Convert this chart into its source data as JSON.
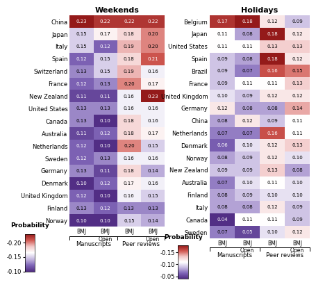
{
  "weekends_countries": [
    "China",
    "Japan",
    "Italy",
    "Spain",
    "Switzerland",
    "France",
    "New Zealand",
    "United States",
    "Canada",
    "Australia",
    "Netherlands",
    "Sweden",
    "Germany",
    "Denmark",
    "United Kingdom",
    "Finland",
    "Norway"
  ],
  "weekends_data": [
    [
      0.23,
      0.22,
      0.22,
      0.22
    ],
    [
      0.15,
      0.17,
      0.18,
      0.2
    ],
    [
      0.15,
      0.12,
      0.19,
      0.2
    ],
    [
      0.12,
      0.15,
      0.18,
      0.21
    ],
    [
      0.13,
      0.15,
      0.19,
      0.16
    ],
    [
      0.12,
      0.13,
      0.2,
      0.17
    ],
    [
      0.11,
      0.11,
      0.16,
      0.23
    ],
    [
      0.13,
      0.13,
      0.16,
      0.16
    ],
    [
      0.13,
      0.1,
      0.18,
      0.16
    ],
    [
      0.11,
      0.12,
      0.18,
      0.17
    ],
    [
      0.12,
      0.1,
      0.2,
      0.15
    ],
    [
      0.12,
      0.13,
      0.16,
      0.16
    ],
    [
      0.13,
      0.11,
      0.18,
      0.14
    ],
    [
      0.1,
      0.12,
      0.17,
      0.16
    ],
    [
      0.12,
      0.1,
      0.16,
      0.15
    ],
    [
      0.13,
      0.12,
      0.13,
      0.13
    ],
    [
      0.1,
      0.1,
      0.15,
      0.14
    ]
  ],
  "holidays_countries": [
    "Belgium",
    "Japan",
    "United States",
    "Spain",
    "Brazil",
    "France",
    "United Kingdom",
    "Germany",
    "China",
    "Netherlands",
    "Denmark",
    "Norway",
    "New Zealand",
    "Australia",
    "Finland",
    "Italy",
    "Canada",
    "Sweden"
  ],
  "holidays_data": [
    [
      0.17,
      0.18,
      0.12,
      0.09
    ],
    [
      0.11,
      0.08,
      0.18,
      0.12
    ],
    [
      0.11,
      0.11,
      0.13,
      0.13
    ],
    [
      0.09,
      0.08,
      0.18,
      0.12
    ],
    [
      0.09,
      0.07,
      0.16,
      0.15
    ],
    [
      0.09,
      0.11,
      0.11,
      0.13
    ],
    [
      0.1,
      0.09,
      0.12,
      0.12
    ],
    [
      0.12,
      0.08,
      0.08,
      0.14
    ],
    [
      0.08,
      0.12,
      0.09,
      0.11
    ],
    [
      0.07,
      0.07,
      0.16,
      0.11
    ],
    [
      0.06,
      0.1,
      0.12,
      0.13
    ],
    [
      0.08,
      0.09,
      0.12,
      0.1
    ],
    [
      0.09,
      0.09,
      0.13,
      0.08
    ],
    [
      0.07,
      0.1,
      0.11,
      0.1
    ],
    [
      0.08,
      0.09,
      0.1,
      0.1
    ],
    [
      0.08,
      0.08,
      0.12,
      0.09
    ],
    [
      0.04,
      0.11,
      0.11,
      0.09
    ],
    [
      0.07,
      0.05,
      0.1,
      0.12
    ]
  ],
  "col_labels": [
    "BMJ",
    "BMJ\nOpen",
    "BMJ",
    "BMJ\nOpen"
  ],
  "group_labels": [
    "Manuscripts",
    "Peer reviews"
  ],
  "weekends_vmin": 0.1,
  "weekends_vmax": 0.23,
  "holidays_vmin": 0.04,
  "holidays_vmax": 0.18,
  "title_weekends": "Weekends",
  "title_holidays": "Holidays",
  "probability_label": "Probability",
  "weekends_cbar_ticks": [
    0.2,
    0.15,
    0.1
  ],
  "weekends_cbar_labels": [
    "-0.20",
    "-0.15",
    "-0.10"
  ],
  "holidays_cbar_ticks": [
    0.15,
    0.1,
    0.05
  ],
  "holidays_cbar_labels": [
    "-0.15",
    "-0.10",
    "-0.05"
  ]
}
